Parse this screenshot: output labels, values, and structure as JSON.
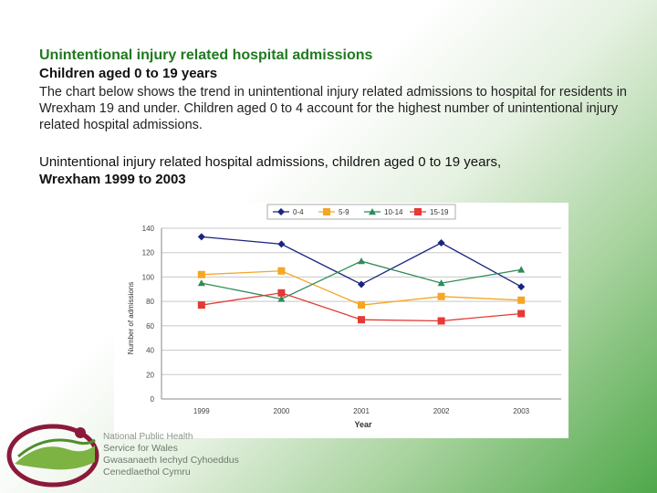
{
  "slide": {
    "title": "Unintentional injury related hospital admissions",
    "subtitle": "Children aged 0 to 19 years",
    "body": "The chart below shows the trend in unintentional injury related admissions to hospital for residents in Wrexham 19 and under. Children aged 0 to 4 account for the highest number of unintentional injury related hospital admissions.",
    "chart_heading_line1": "Unintentional injury related hospital admissions, children aged 0 to 19 years,",
    "chart_heading_line2": "Wrexham 1999 to 2003"
  },
  "logo": {
    "line1": "National Public Health",
    "line2": "Service for Wales",
    "line3": "Gwasanaeth Iechyd Cyhoeddus",
    "line4": "Cenedlaethol Cymru"
  },
  "colors": {
    "s04": "#1a237e",
    "s59": "#f5a623",
    "s1014": "#2e8b57",
    "s1519": "#e53935"
  },
  "chart_data": {
    "type": "line",
    "title": "",
    "xlabel": "Year",
    "ylabel": "Number of admissions",
    "categories": [
      "1999",
      "2000",
      "2001",
      "2002",
      "2003"
    ],
    "ylim": [
      0,
      140
    ],
    "yticks": [
      "0",
      "20",
      "40",
      "60",
      "80",
      "100",
      "120",
      "140"
    ],
    "legend_position": "top",
    "grid": true,
    "series": [
      {
        "name": "0-4",
        "values": [
          133,
          127,
          94,
          128,
          92
        ],
        "marker": "diamond"
      },
      {
        "name": "5-9",
        "values": [
          102,
          105,
          77,
          84,
          81
        ],
        "marker": "square"
      },
      {
        "name": "10-14",
        "values": [
          95,
          82,
          113,
          95,
          106
        ],
        "marker": "triangle"
      },
      {
        "name": "15-19",
        "values": [
          77,
          87,
          65,
          64,
          70
        ],
        "marker": "square"
      }
    ]
  }
}
